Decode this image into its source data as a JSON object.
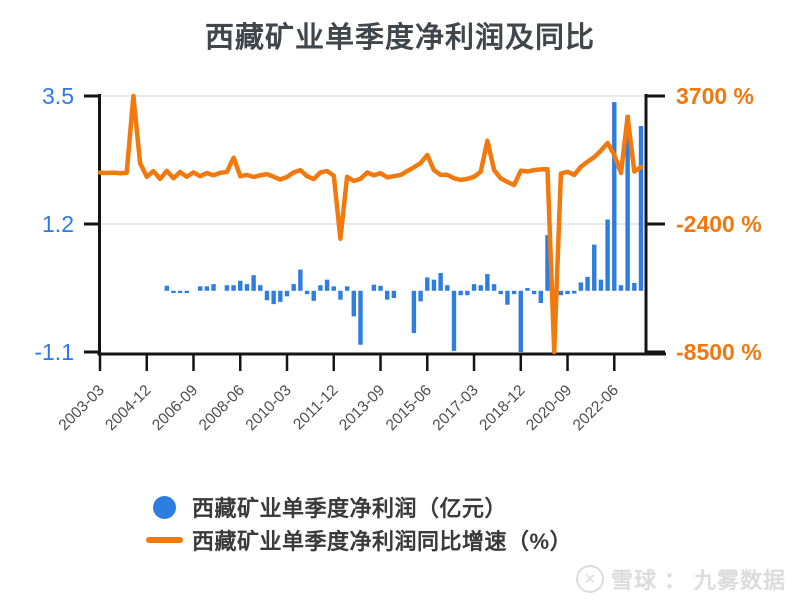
{
  "title": "西藏矿业单季度净利润及同比",
  "colors": {
    "bar": "#2e7de0",
    "line": "#f2790d",
    "left_axis_label": "#2979e8",
    "right_axis_label": "#f0780f",
    "axis": "#141414",
    "grid": "#e3e3e3",
    "x_label": "#4d4d4d",
    "title_text": "#41464b"
  },
  "legend": [
    {
      "swatch": "circle",
      "label": "西藏矿业单季度净利润（亿元）"
    },
    {
      "swatch": "line",
      "label": "西藏矿业单季度净利润同比增速（%）"
    }
  ],
  "watermark": {
    "logo": "xueqiu-circle-x",
    "site": "雪球",
    "separator": "：",
    "user": "九雾数据"
  },
  "chart_data": {
    "type": "combo",
    "left_axis": {
      "title": "净利润（亿元）",
      "ticks": [
        3.5,
        1.2,
        -1.1
      ],
      "min": -1.1,
      "max": 3.5
    },
    "right_axis": {
      "title": "同比增速（%）",
      "tick_labels": [
        "3700 %",
        "-2400 %",
        "-8500 %"
      ],
      "tick_values": [
        3700,
        -2400,
        -8500
      ],
      "min": -8500,
      "max": 3700
    },
    "x_tick_labels": [
      "2003-03",
      "2004-12",
      "2006-09",
      "2008-06",
      "2010-03",
      "2011-12",
      "2013-09",
      "2015-06",
      "2017-03",
      "2018-12",
      "2020-09",
      "2022-06"
    ],
    "x_tick_every": 7,
    "categories": [
      "2003-03",
      "2003-06",
      "2003-09",
      "2003-12",
      "2004-03",
      "2004-06",
      "2004-09",
      "2004-12",
      "2005-03",
      "2005-06",
      "2005-09",
      "2005-12",
      "2006-03",
      "2006-06",
      "2006-09",
      "2006-12",
      "2007-03",
      "2007-06",
      "2007-09",
      "2007-12",
      "2008-03",
      "2008-06",
      "2008-09",
      "2008-12",
      "2009-03",
      "2009-06",
      "2009-09",
      "2009-12",
      "2010-03",
      "2010-06",
      "2010-09",
      "2010-12",
      "2011-03",
      "2011-06",
      "2011-09",
      "2011-12",
      "2012-03",
      "2012-06",
      "2012-09",
      "2012-12",
      "2013-03",
      "2013-06",
      "2013-09",
      "2013-12",
      "2014-03",
      "2014-06",
      "2014-09",
      "2014-12",
      "2015-03",
      "2015-06",
      "2015-09",
      "2015-12",
      "2016-03",
      "2016-06",
      "2016-09",
      "2016-12",
      "2017-03",
      "2017-06",
      "2017-09",
      "2017-12",
      "2018-03",
      "2018-06",
      "2018-09",
      "2018-12",
      "2019-03",
      "2019-06",
      "2019-09",
      "2019-12",
      "2020-03",
      "2020-06",
      "2020-09",
      "2020-12",
      "2021-03",
      "2021-06",
      "2021-09",
      "2021-12",
      "2022-03",
      "2022-06",
      "2022-09",
      "2022-12",
      "2023-03",
      "2023-06"
    ],
    "series": [
      {
        "name": "西藏矿业单季度净利润（亿元）",
        "type": "bar",
        "axis": "left",
        "unit": "亿元",
        "values": [
          null,
          null,
          null,
          null,
          null,
          null,
          null,
          null,
          null,
          null,
          0.09,
          -0.04,
          -0.04,
          -0.04,
          null,
          0.08,
          0.08,
          0.12,
          null,
          0.1,
          0.1,
          0.18,
          0.12,
          0.28,
          0.1,
          -0.17,
          -0.24,
          -0.2,
          -0.1,
          0.12,
          0.38,
          -0.06,
          -0.18,
          0.1,
          0.2,
          0.08,
          -0.16,
          0.08,
          -0.46,
          -0.97,
          null,
          0.11,
          0.09,
          -0.16,
          -0.13,
          null,
          null,
          -0.76,
          -0.19,
          0.24,
          0.2,
          0.32,
          0.1,
          -1.08,
          -0.08,
          -0.08,
          0.12,
          0.1,
          0.3,
          0.12,
          -0.06,
          -0.25,
          -0.06,
          -1.1,
          0.05,
          -0.06,
          -0.22,
          1.0,
          -0.05,
          -0.08,
          -0.06,
          -0.05,
          0.15,
          0.25,
          0.83,
          0.2,
          1.28,
          3.39,
          0.1,
          3.16,
          0.14,
          2.96
        ]
      },
      {
        "name": "西藏矿业单季度净利润同比增速（%）",
        "type": "line",
        "axis": "right",
        "unit": "%",
        "values": [
          50,
          30,
          50,
          20,
          40,
          3700,
          500,
          -150,
          120,
          -250,
          130,
          -220,
          80,
          -150,
          60,
          -120,
          30,
          -80,
          40,
          80,
          760,
          -120,
          -60,
          -160,
          -80,
          -20,
          -150,
          -280,
          -160,
          60,
          170,
          -120,
          -260,
          60,
          120,
          -100,
          -3100,
          -150,
          -350,
          -250,
          60,
          -80,
          20,
          -180,
          -120,
          -60,
          120,
          300,
          500,
          890,
          170,
          -60,
          -60,
          -220,
          -300,
          -250,
          -150,
          90,
          1570,
          170,
          -220,
          -400,
          -540,
          140,
          100,
          170,
          200,
          210,
          -8500,
          0,
          90,
          -60,
          330,
          570,
          790,
          1100,
          1460,
          900,
          30,
          2700,
          100,
          315
        ]
      }
    ]
  }
}
